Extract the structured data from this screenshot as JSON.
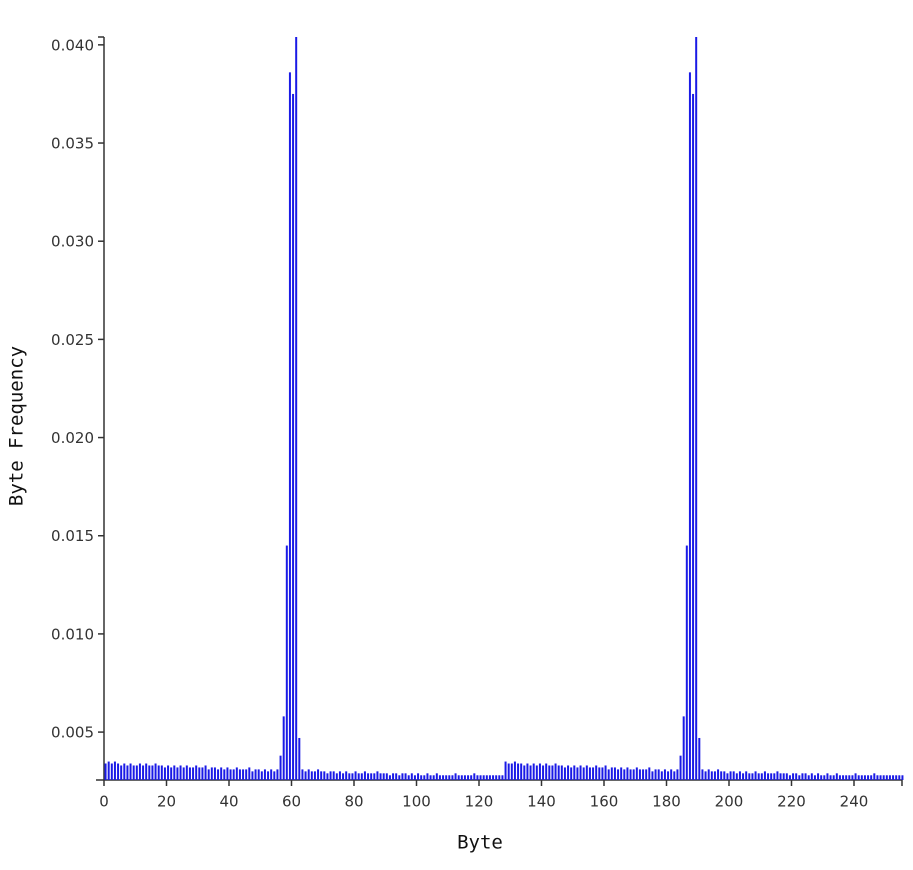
{
  "chart_data": {
    "type": "bar",
    "x_label": "Byte",
    "y_label": "Byte Frequency",
    "color": "#1a1ae6",
    "xlim": [
      0,
      256
    ],
    "xticks": [
      0,
      20,
      40,
      60,
      80,
      100,
      120,
      140,
      160,
      180,
      200,
      220,
      240
    ],
    "ylim": [
      0.00256,
      0.0404
    ],
    "yticks": [
      0.005,
      {
        "value": 0.01,
        "label": "0.010"
      },
      0.015,
      {
        "value": 0.02,
        "label": "0.020"
      },
      0.025,
      {
        "value": 0.03,
        "label": "0.030"
      },
      0.035,
      {
        "value": 0.04,
        "label": "0.040"
      }
    ],
    "x": [
      0,
      1,
      2,
      3,
      4,
      5,
      6,
      7,
      8,
      9,
      10,
      11,
      12,
      13,
      14,
      15,
      16,
      17,
      18,
      19,
      20,
      21,
      22,
      23,
      24,
      25,
      26,
      27,
      28,
      29,
      30,
      31,
      32,
      33,
      34,
      35,
      36,
      37,
      38,
      39,
      40,
      41,
      42,
      43,
      44,
      45,
      46,
      47,
      48,
      49,
      50,
      51,
      52,
      53,
      54,
      55,
      56,
      57,
      58,
      59,
      60,
      61,
      62,
      63,
      64,
      65,
      66,
      67,
      68,
      69,
      70,
      71,
      72,
      73,
      74,
      75,
      76,
      77,
      78,
      79,
      80,
      81,
      82,
      83,
      84,
      85,
      86,
      87,
      88,
      89,
      90,
      91,
      92,
      93,
      94,
      95,
      96,
      97,
      98,
      99,
      100,
      101,
      102,
      103,
      104,
      105,
      106,
      107,
      108,
      109,
      110,
      111,
      112,
      113,
      114,
      115,
      116,
      117,
      118,
      119,
      120,
      121,
      122,
      123,
      124,
      125,
      126,
      127,
      128,
      129,
      130,
      131,
      132,
      133,
      134,
      135,
      136,
      137,
      138,
      139,
      140,
      141,
      142,
      143,
      144,
      145,
      146,
      147,
      148,
      149,
      150,
      151,
      152,
      153,
      154,
      155,
      156,
      157,
      158,
      159,
      160,
      161,
      162,
      163,
      164,
      165,
      166,
      167,
      168,
      169,
      170,
      171,
      172,
      173,
      174,
      175,
      176,
      177,
      178,
      179,
      180,
      181,
      182,
      183,
      184,
      185,
      186,
      187,
      188,
      189,
      190,
      191,
      192,
      193,
      194,
      195,
      196,
      197,
      198,
      199,
      200,
      201,
      202,
      203,
      204,
      205,
      206,
      207,
      208,
      209,
      210,
      211,
      212,
      213,
      214,
      215,
      216,
      217,
      218,
      219,
      220,
      221,
      222,
      223,
      224,
      225,
      226,
      227,
      228,
      229,
      230,
      231,
      232,
      233,
      234,
      235,
      236,
      237,
      238,
      239,
      240,
      241,
      242,
      243,
      244,
      245,
      246,
      247,
      248,
      249,
      250,
      251,
      252,
      253,
      254,
      255
    ],
    "values": [
      0.0034,
      0.0035,
      0.0034,
      0.0035,
      0.0034,
      0.0033,
      0.0034,
      0.0033,
      0.0034,
      0.0033,
      0.0033,
      0.0034,
      0.0033,
      0.0034,
      0.0033,
      0.0033,
      0.0034,
      0.0033,
      0.0033,
      0.0032,
      0.0033,
      0.0032,
      0.0033,
      0.0032,
      0.0033,
      0.0032,
      0.0033,
      0.0032,
      0.0032,
      0.0033,
      0.0032,
      0.0032,
      0.0033,
      0.0031,
      0.0032,
      0.0032,
      0.0031,
      0.0032,
      0.0031,
      0.0032,
      0.0031,
      0.0031,
      0.0032,
      0.0031,
      0.0031,
      0.0031,
      0.0032,
      0.003,
      0.0031,
      0.0031,
      0.003,
      0.0031,
      0.003,
      0.0031,
      0.003,
      0.0031,
      0.0038,
      0.0058,
      0.0145,
      0.0386,
      0.0375,
      0.0404,
      0.0047,
      0.0031,
      0.003,
      0.0031,
      0.003,
      0.003,
      0.0031,
      0.003,
      0.003,
      0.0029,
      0.003,
      0.003,
      0.0029,
      0.003,
      0.0029,
      0.003,
      0.0029,
      0.0029,
      0.003,
      0.0029,
      0.0029,
      0.003,
      0.0029,
      0.0029,
      0.0029,
      0.003,
      0.0029,
      0.0029,
      0.0029,
      0.0028,
      0.0029,
      0.0029,
      0.0028,
      0.0029,
      0.0029,
      0.0028,
      0.0029,
      0.0028,
      0.0029,
      0.0028,
      0.0028,
      0.0029,
      0.0028,
      0.0028,
      0.0029,
      0.0028,
      0.0028,
      0.0028,
      0.0028,
      0.0028,
      0.0029,
      0.0028,
      0.0028,
      0.0028,
      0.0028,
      0.0028,
      0.0029,
      0.0028,
      0.0028,
      0.0028,
      0.0028,
      0.0028,
      0.0028,
      0.0028,
      0.0028,
      0.0028,
      0.0035,
      0.0034,
      0.0034,
      0.0035,
      0.0034,
      0.0034,
      0.0033,
      0.0034,
      0.0033,
      0.0034,
      0.0033,
      0.0034,
      0.0033,
      0.0034,
      0.0033,
      0.0033,
      0.0034,
      0.0033,
      0.0033,
      0.0032,
      0.0033,
      0.0032,
      0.0033,
      0.0032,
      0.0033,
      0.0032,
      0.0033,
      0.0032,
      0.0032,
      0.0033,
      0.0032,
      0.0032,
      0.0033,
      0.0031,
      0.0032,
      0.0032,
      0.0031,
      0.0032,
      0.0031,
      0.0032,
      0.0031,
      0.0031,
      0.0032,
      0.0031,
      0.0031,
      0.0031,
      0.0032,
      0.003,
      0.0031,
      0.0031,
      0.003,
      0.0031,
      0.003,
      0.0031,
      0.003,
      0.0031,
      0.0038,
      0.0058,
      0.0145,
      0.0386,
      0.0375,
      0.0404,
      0.0047,
      0.0031,
      0.003,
      0.0031,
      0.003,
      0.003,
      0.0031,
      0.003,
      0.003,
      0.0029,
      0.003,
      0.003,
      0.0029,
      0.003,
      0.0029,
      0.003,
      0.0029,
      0.0029,
      0.003,
      0.0029,
      0.0029,
      0.003,
      0.0029,
      0.0029,
      0.0029,
      0.003,
      0.0029,
      0.0029,
      0.0029,
      0.0028,
      0.0029,
      0.0029,
      0.0028,
      0.0029,
      0.0029,
      0.0028,
      0.0029,
      0.0028,
      0.0029,
      0.0028,
      0.0028,
      0.0029,
      0.0028,
      0.0028,
      0.0029,
      0.0028,
      0.0028,
      0.0028,
      0.0028,
      0.0028,
      0.0029,
      0.0028,
      0.0028,
      0.0028,
      0.0028,
      0.0028,
      0.0029,
      0.0028,
      0.0028,
      0.0028,
      0.0028,
      0.0028,
      0.0028,
      0.0028,
      0.0028,
      0.0028
    ]
  }
}
